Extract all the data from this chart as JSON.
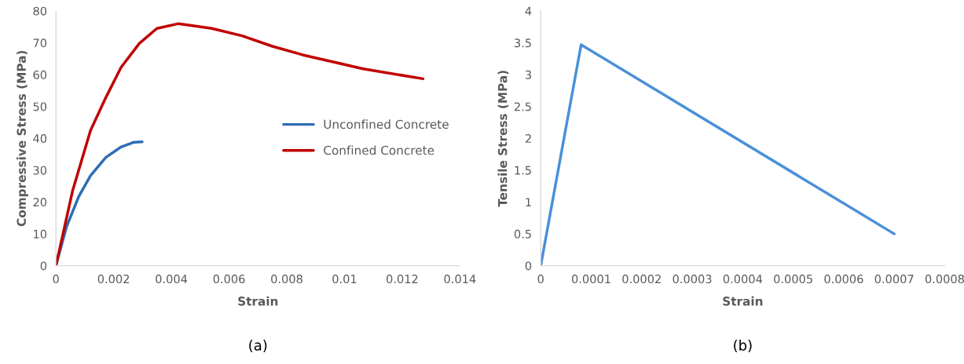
{
  "chart_data": [
    {
      "type": "line",
      "xlabel": "Strain",
      "ylabel": "Compressive Stress (MPa)",
      "annotations": [
        "(a)"
      ],
      "xlim": [
        0,
        0.014
      ],
      "xticks": [
        0,
        0.002,
        0.004,
        0.006,
        0.008,
        0.01,
        0.012,
        0.014
      ],
      "ylim": [
        0,
        80
      ],
      "yticks": [
        0,
        10,
        20,
        30,
        40,
        50,
        60,
        70,
        80
      ],
      "grid": false,
      "legend": "center right",
      "series": [
        {
          "name": "Unconfined Concrete",
          "color": "#2e6db4",
          "x": [
            0,
            0.00037,
            0.00079,
            0.0012,
            0.00173,
            0.00226,
            0.00268,
            0.00299
          ],
          "values": [
            0,
            12.3,
            21.7,
            28.3,
            34,
            37.3,
            38.7,
            38.9
          ]
        },
        {
          "name": "Confined Concrete",
          "color": "#c00000",
          "x": [
            0,
            0.00058,
            0.0012,
            0.00173,
            0.00226,
            0.00289,
            0.0035,
            0.00425,
            0.0054,
            0.00645,
            0.0075,
            0.00855,
            0.01065,
            0.01272
          ],
          "values": [
            0,
            23.6,
            42.5,
            52.8,
            62.3,
            69.8,
            74.5,
            76,
            74.5,
            72.2,
            68.9,
            66.2,
            61.8,
            58.7
          ]
        }
      ]
    },
    {
      "type": "line",
      "xlabel": "Strain",
      "ylabel": "Tensile Stress (MPa)",
      "annotations": [
        "(b)"
      ],
      "xlim": [
        0,
        0.0008
      ],
      "xticks": [
        0,
        0.0001,
        0.0002,
        0.0003,
        0.0004,
        0.0005,
        0.0006,
        0.0007,
        0.0008
      ],
      "ylim": [
        0,
        4
      ],
      "yticks": [
        0,
        0.5,
        1,
        1.5,
        2,
        2.5,
        3,
        3.5,
        4
      ],
      "grid": false,
      "legend": false,
      "series": [
        {
          "color": "#4a90d9",
          "x": [
            0,
            8e-05,
            0.0007
          ],
          "values": [
            0,
            3.47,
            0.5
          ]
        }
      ]
    }
  ]
}
